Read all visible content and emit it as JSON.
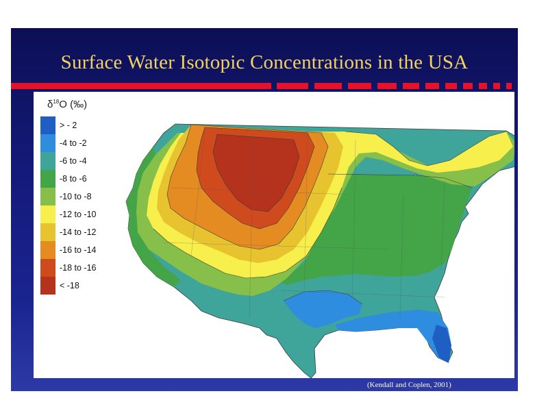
{
  "slide": {
    "title": "Surface Water Isotopic Concentrations in the USA",
    "credit": "(Kendall and Coplen, 2001)",
    "background_color": "#12177a",
    "title_color": "#f3d35e",
    "stripe_color": "#e8112c"
  },
  "legend": {
    "title_symbol": "δ",
    "title_sup": "18",
    "title_rest": "O (‰)",
    "classes": [
      {
        "label": "> - 2",
        "color": "#1f5fc4"
      },
      {
        "label": "-4 to -2",
        "color": "#2f8de0"
      },
      {
        "label": "-6 to -4",
        "color": "#3fa49a"
      },
      {
        "label": "-8 to -6",
        "color": "#44a448"
      },
      {
        "label": "-10 to -8",
        "color": "#86c04a"
      },
      {
        "label": "-12 to -10",
        "color": "#f6ef4c"
      },
      {
        "label": "-14 to -12",
        "color": "#e7c32f"
      },
      {
        "label": "-16 to -14",
        "color": "#e48b22"
      },
      {
        "label": "-18 to -16",
        "color": "#cf4a1d"
      },
      {
        "label": "< -18",
        "color": "#b5321d"
      }
    ]
  }
}
